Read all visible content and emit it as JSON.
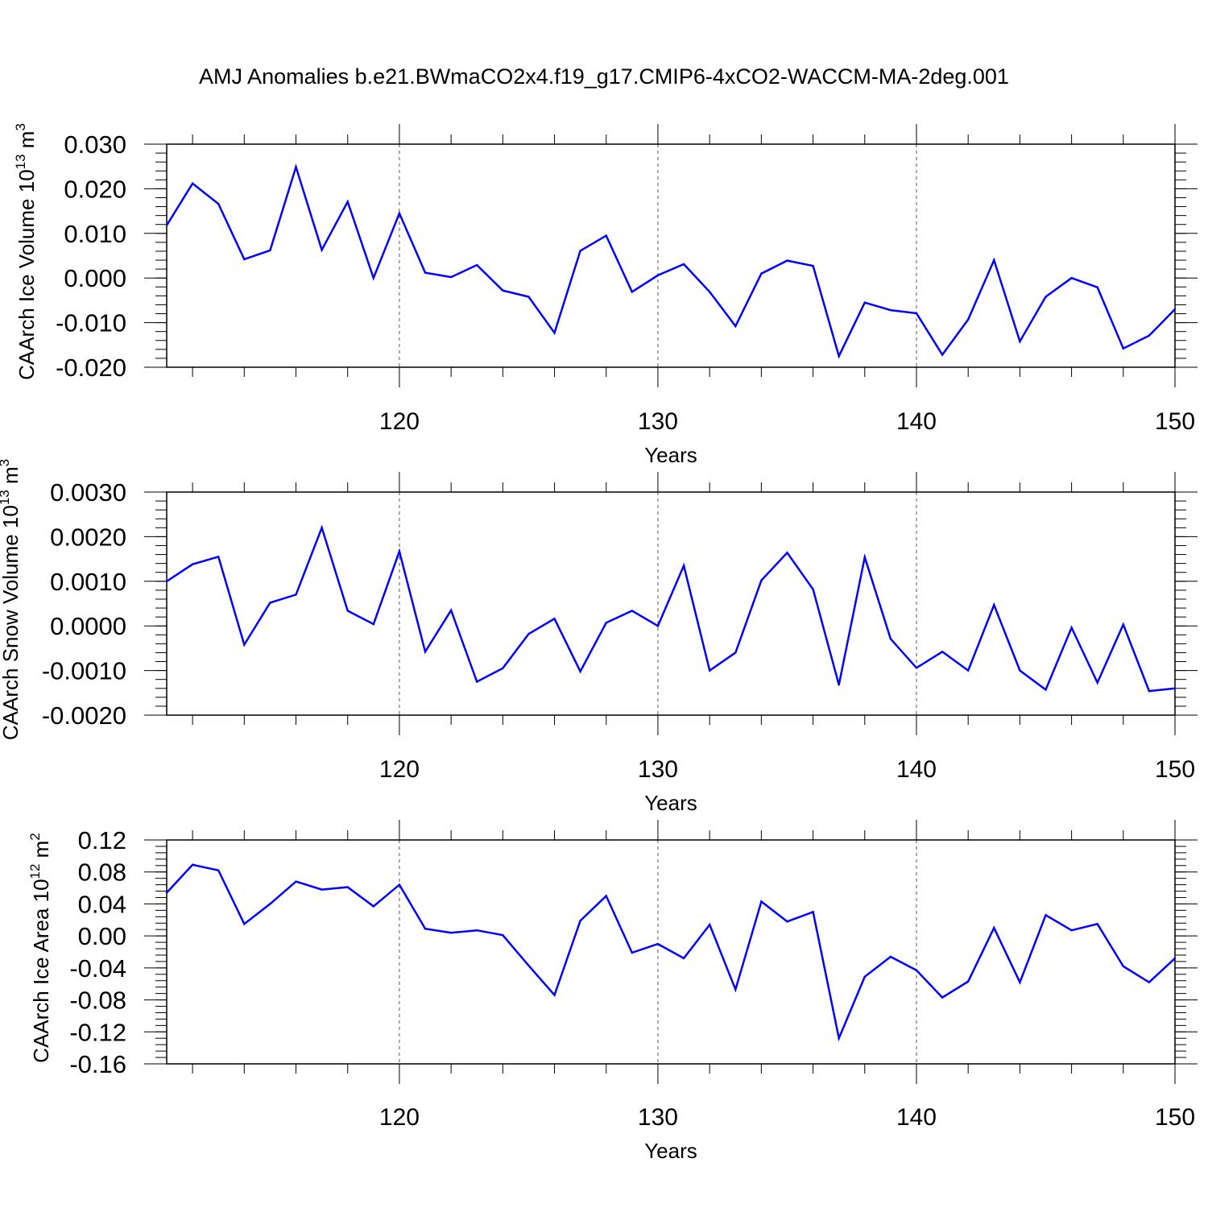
{
  "title": "AMJ Anomalies b.e21.BWmaCO2x4.f19_g17.CMIP6-4xCO2-WACCM-MA-2deg.001",
  "line_color": "#0000ff",
  "chart_data": [
    {
      "type": "line",
      "ylabel": "CAArch Ice Volume",
      "units_base": "10",
      "units_exp": "13",
      "units_unit": "m",
      "units_unit_exp": "3",
      "xlabel": "Years",
      "xlim": [
        111,
        150
      ],
      "ylim": [
        -0.02,
        0.03
      ],
      "y_ticks": [
        0.03,
        0.02,
        0.01,
        0.0,
        -0.01,
        -0.02
      ],
      "y_tick_labels": [
        "0.030",
        "0.020",
        "0.010",
        "0.000",
        "-0.010",
        "-0.020"
      ],
      "x_ticks": [
        120,
        130,
        140,
        150
      ],
      "x_tick_labels": [
        "120",
        "130",
        "140",
        "150"
      ],
      "x": [
        111,
        112,
        113,
        114,
        115,
        116,
        117,
        118,
        119,
        120,
        121,
        122,
        123,
        124,
        125,
        126,
        127,
        128,
        129,
        130,
        131,
        132,
        133,
        134,
        135,
        136,
        137,
        138,
        139,
        140,
        141,
        142,
        143,
        144,
        145,
        146,
        147,
        148,
        149,
        150
      ],
      "y": [
        0.0118,
        0.0212,
        0.0166,
        0.0042,
        0.0062,
        0.0249,
        0.0063,
        0.0171,
        0.0,
        0.0145,
        0.0012,
        0.0002,
        0.0029,
        -0.0028,
        -0.0042,
        -0.0123,
        0.0061,
        0.0095,
        -0.0031,
        0.0006,
        0.0031,
        -0.0031,
        -0.0108,
        0.001,
        0.0039,
        0.0027,
        -0.0175,
        -0.0055,
        -0.0072,
        -0.0079,
        -0.0172,
        -0.0093,
        0.004,
        -0.0142,
        -0.0042,
        0.0,
        -0.0021,
        -0.0158,
        -0.0129,
        -0.007
      ]
    },
    {
      "type": "line",
      "ylabel": "CAArch Snow Volume",
      "units_base": "10",
      "units_exp": "13",
      "units_unit": "m",
      "units_unit_exp": "3",
      "xlabel": "Years",
      "xlim": [
        111,
        150
      ],
      "ylim": [
        -0.002,
        0.003
      ],
      "y_ticks": [
        0.003,
        0.002,
        0.001,
        0.0,
        -0.001,
        -0.002
      ],
      "y_tick_labels": [
        "0.0030",
        "0.0020",
        "0.0010",
        "0.0000",
        "-0.0010",
        "-0.0020"
      ],
      "x_ticks": [
        120,
        130,
        140,
        150
      ],
      "x_tick_labels": [
        "120",
        "130",
        "140",
        "150"
      ],
      "x": [
        111,
        112,
        113,
        114,
        115,
        116,
        117,
        118,
        119,
        120,
        121,
        122,
        123,
        124,
        125,
        126,
        127,
        128,
        129,
        130,
        131,
        132,
        133,
        134,
        135,
        136,
        137,
        138,
        139,
        140,
        141,
        142,
        143,
        144,
        145,
        146,
        147,
        148,
        149,
        150
      ],
      "y": [
        0.001,
        0.00138,
        0.00155,
        -0.00042,
        0.00052,
        0.0007,
        0.0022,
        0.00034,
        4e-05,
        0.00167,
        -0.00058,
        0.00035,
        -0.00125,
        -0.00095,
        -0.00018,
        0.00016,
        -0.00102,
        7e-05,
        0.00034,
        0.0,
        0.00135,
        -0.001,
        -0.0006,
        0.00102,
        0.00164,
        0.00082,
        -0.00132,
        0.00154,
        -0.00029,
        -0.00094,
        -0.00058,
        -0.001,
        0.00047,
        -0.001,
        -0.00143,
        -4e-05,
        -0.00127,
        3e-05,
        -0.00146,
        -0.0014
      ]
    },
    {
      "type": "line",
      "ylabel": "CAArch Ice Area",
      "units_base": "10",
      "units_exp": "12",
      "units_unit": "m",
      "units_unit_exp": "2",
      "xlabel": "Years",
      "xlim": [
        111,
        150
      ],
      "ylim": [
        -0.16,
        0.12
      ],
      "y_ticks": [
        0.12,
        0.08,
        0.04,
        0.0,
        -0.04,
        -0.08,
        -0.12,
        -0.16
      ],
      "y_tick_labels": [
        "0.12",
        "0.08",
        "0.04",
        "0.00",
        "-0.04",
        "-0.08",
        "-0.12",
        "-0.16"
      ],
      "x_ticks": [
        120,
        130,
        140,
        150
      ],
      "x_tick_labels": [
        "120",
        "130",
        "140",
        "150"
      ],
      "x": [
        111,
        112,
        113,
        114,
        115,
        116,
        117,
        118,
        119,
        120,
        121,
        122,
        123,
        124,
        125,
        126,
        127,
        128,
        129,
        130,
        131,
        132,
        133,
        134,
        135,
        136,
        137,
        138,
        139,
        140,
        141,
        142,
        143,
        144,
        145,
        146,
        147,
        148,
        149,
        150
      ],
      "y": [
        0.054,
        0.089,
        0.082,
        0.015,
        0.04,
        0.068,
        0.058,
        0.061,
        0.037,
        0.064,
        0.009,
        0.004,
        0.007,
        0.001,
        -0.037,
        -0.074,
        0.019,
        0.05,
        -0.021,
        -0.01,
        -0.028,
        0.014,
        -0.067,
        0.043,
        0.018,
        0.03,
        -0.128,
        -0.051,
        -0.026,
        -0.043,
        -0.077,
        -0.057,
        0.01,
        -0.058,
        0.026,
        0.007,
        0.015,
        -0.038,
        -0.058,
        -0.028
      ]
    }
  ]
}
